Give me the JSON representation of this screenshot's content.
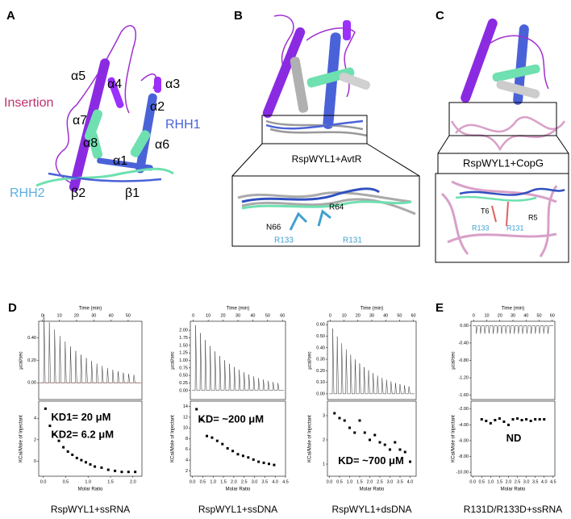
{
  "panels": [
    {
      "letter": "A",
      "labels": [
        "α5",
        "α4",
        "α3",
        "Insertion",
        "α7",
        "α2",
        "RHH1",
        "α8",
        "α6",
        "α1",
        "RHH2",
        "β2",
        "β1"
      ]
    },
    {
      "letter": "B",
      "caption": "RspWYL1+AvtR",
      "labels": [
        "R64",
        "N66",
        "R133",
        "R131"
      ]
    },
    {
      "letter": "C",
      "caption": "RspWYL1+CopG",
      "labels": [
        "T6",
        "R5",
        "R133",
        "R131"
      ]
    }
  ],
  "itc_panels": [
    {
      "letter": "D"
    },
    {
      "letter": "E"
    }
  ],
  "itc": [
    {
      "caption": "RspWYL1+ssRNA",
      "time_label": "Time (min)",
      "time_lim": [
        -2,
        58
      ],
      "time_ticks": [
        0,
        10,
        20,
        30,
        40,
        50
      ],
      "heat_label": "µcal/sec",
      "heat_lim": [
        -0.15,
        0.55
      ],
      "heat_ticks": [
        {
          "value": 0.4,
          "label": "0.40"
        },
        {
          "value": 0.2,
          "label": "0.20"
        },
        {
          "value": 0,
          "label": "0.00"
        }
      ],
      "enthalpy_label": "KCal/Mole of Injectant",
      "enthalpy_lim": [
        -1.4,
        5.6
      ],
      "enthalpy_ticks": [
        4,
        2,
        0
      ],
      "ratio_label": "Molar Ratio",
      "ratio_lim": [
        -0.1,
        2.2
      ],
      "ratio_ticks": [
        {
          "value": 0,
          "label": "0.0"
        },
        {
          "value": 0.5,
          "label": "0.5"
        },
        {
          "value": 1,
          "label": "1.0"
        },
        {
          "value": 1.5,
          "label": "1.5"
        },
        {
          "value": 2,
          "label": "2.0"
        }
      ],
      "points_x": [
        0.05,
        0.15,
        0.25,
        0.35,
        0.45,
        0.55,
        0.65,
        0.75,
        0.85,
        0.95,
        1.05,
        1.15,
        1.3,
        1.45,
        1.6,
        1.75,
        1.9,
        2.05
      ],
      "points_y": [
        4.9,
        3.3,
        2.5,
        1.9,
        1.3,
        0.9,
        0.6,
        0.3,
        0.1,
        -0.1,
        -0.3,
        -0.5,
        -0.6,
        -0.8,
        -0.9,
        -1.0,
        -1.0,
        -1.0
      ],
      "annotations": [
        "KD1= 20 μM",
        "KD2= 6.2 μM"
      ]
    },
    {
      "caption": "RspWYL1+ssDNA",
      "time_label": "Time (min)",
      "time_lim": [
        -2,
        62
      ],
      "time_ticks": [
        0,
        10,
        20,
        30,
        40,
        50,
        60
      ],
      "heat_label": "µcal/sec",
      "heat_lim": [
        -0.3,
        2.3
      ],
      "heat_ticks": [
        {
          "value": 2,
          "label": "2.00"
        },
        {
          "value": 1.75,
          "label": "1.75"
        },
        {
          "value": 1.5,
          "label": "1.50"
        },
        {
          "value": 1.25,
          "label": "1.25"
        },
        {
          "value": 1,
          "label": "1.00"
        },
        {
          "value": 0.75,
          "label": "0.75"
        },
        {
          "value": 0.5,
          "label": "0.50"
        },
        {
          "value": 0.25,
          "label": "0.25"
        },
        {
          "value": 0,
          "label": "0.00"
        }
      ],
      "enthalpy_label": "KCal/Mole of Injectant",
      "enthalpy_lim": [
        1,
        15
      ],
      "enthalpy_ticks": [
        14,
        12,
        10,
        8,
        6,
        4,
        2
      ],
      "ratio_label": "Molar Ratio",
      "ratio_lim": [
        -0.1,
        4.5
      ],
      "ratio_ticks": [
        {
          "value": 0,
          "label": "0.0"
        },
        {
          "value": 0.5,
          "label": "0.5"
        },
        {
          "value": 1,
          "label": "1.0"
        },
        {
          "value": 1.5,
          "label": "1.5"
        },
        {
          "value": 2,
          "label": "2.0"
        },
        {
          "value": 2.5,
          "label": "2.5"
        },
        {
          "value": 3,
          "label": "3.0"
        },
        {
          "value": 3.5,
          "label": "3.5"
        },
        {
          "value": 4,
          "label": "4.0"
        },
        {
          "value": 4.5,
          "label": "4.5"
        }
      ],
      "points_x": [
        0.2,
        0.45,
        0.7,
        0.95,
        1.2,
        1.45,
        1.7,
        1.95,
        2.2,
        2.45,
        2.7,
        2.95,
        3.2,
        3.45,
        3.7,
        3.95
      ],
      "points_y": [
        13.5,
        11.5,
        8.5,
        8.2,
        7.6,
        7.0,
        6.2,
        5.7,
        5.1,
        4.8,
        4.5,
        4.1,
        3.7,
        3.5,
        3.3,
        3.1
      ],
      "annotations": [
        "KD= ~200 μM"
      ]
    },
    {
      "caption": "RspWYL1+dsDNA",
      "time_label": "Time (min)",
      "time_lim": [
        -2,
        62
      ],
      "time_ticks": [
        0,
        10,
        20,
        30,
        40,
        50,
        60
      ],
      "heat_label": "µcal/sec",
      "heat_lim": [
        -0.05,
        0.63
      ],
      "heat_ticks": [
        {
          "value": 0.6,
          "label": "0.60"
        },
        {
          "value": 0.5,
          "label": "0.50"
        },
        {
          "value": 0.4,
          "label": "0.40"
        },
        {
          "value": 0.3,
          "label": "0.30"
        },
        {
          "value": 0.2,
          "label": "0.20"
        },
        {
          "value": 0.1,
          "label": "0.10"
        },
        {
          "value": 0,
          "label": "0.00"
        }
      ],
      "enthalpy_label": "KCal/Mole of Injectant",
      "enthalpy_lim": [
        0.5,
        3.6
      ],
      "enthalpy_ticks": [
        3,
        2,
        1
      ],
      "ratio_label": "Molar Ratio",
      "ratio_lim": [
        -0.1,
        4.3
      ],
      "ratio_ticks": [
        {
          "value": 0,
          "label": "0.0"
        },
        {
          "value": 0.5,
          "label": "0.5"
        },
        {
          "value": 1,
          "label": "1.0"
        },
        {
          "value": 1.5,
          "label": "1.5"
        },
        {
          "value": 2,
          "label": "2.0"
        },
        {
          "value": 2.5,
          "label": "2.5"
        },
        {
          "value": 3,
          "label": "3.0"
        },
        {
          "value": 3.5,
          "label": "3.5"
        },
        {
          "value": 4,
          "label": "4.0"
        }
      ],
      "points_x": [
        0.25,
        0.5,
        0.75,
        1.0,
        1.25,
        1.5,
        1.75,
        2.0,
        2.25,
        2.5,
        2.75,
        3.0,
        3.25,
        3.5,
        3.75,
        4.0
      ],
      "points_y": [
        3.1,
        2.9,
        2.8,
        2.5,
        2.3,
        2.8,
        2.3,
        2.0,
        2.2,
        1.9,
        1.8,
        1.6,
        1.9,
        1.6,
        1.5,
        1.1
      ],
      "annotations": [
        "KD= ~700 μM"
      ]
    },
    {
      "caption": "R131D/R133D+ssRNA",
      "time_label": "Time (min)",
      "time_lim": [
        -2,
        62
      ],
      "time_ticks": [
        0,
        10,
        20,
        30,
        40,
        50,
        60
      ],
      "heat_label": "µcal/sec",
      "heat_lim": [
        -1.7,
        0.1
      ],
      "heat_ticks": [
        {
          "value": 0,
          "label": "0.00"
        },
        {
          "value": -0.4,
          "label": "-0.40"
        },
        {
          "value": -0.8,
          "label": "-0.80"
        },
        {
          "value": -1.2,
          "label": "-1.20"
        },
        {
          "value": -1.6,
          "label": "-1.60"
        }
      ],
      "enthalpy_label": "KCal/Mole of Injectant",
      "enthalpy_lim": [
        -10.5,
        -1
      ],
      "enthalpy_ticks": [
        {
          "value": -2,
          "label": "-2.00"
        },
        {
          "value": -4,
          "label": "-4.00"
        },
        {
          "value": -6,
          "label": "-6.00"
        },
        {
          "value": -8,
          "label": "-8.00"
        },
        {
          "value": -10,
          "label": "-10.00"
        }
      ],
      "ratio_label": "Molar Ratio",
      "ratio_lim": [
        -0.1,
        4.6
      ],
      "ratio_ticks": [
        {
          "value": 0,
          "label": "0.0"
        },
        {
          "value": 0.5,
          "label": "0.5"
        },
        {
          "value": 1,
          "label": "1.0"
        },
        {
          "value": 1.5,
          "label": "1.5"
        },
        {
          "value": 2,
          "label": "2.0"
        },
        {
          "value": 2.5,
          "label": "2.5"
        },
        {
          "value": 3,
          "label": "3.0"
        },
        {
          "value": 3.5,
          "label": "3.5"
        },
        {
          "value": 4,
          "label": "4.0"
        },
        {
          "value": 4.5,
          "label": "4.5"
        }
      ],
      "points_x": [
        0.5,
        0.75,
        1.0,
        1.25,
        1.5,
        1.75,
        2.0,
        2.25,
        2.5,
        2.75,
        3.0,
        3.25,
        3.5,
        3.75,
        4.0
      ],
      "points_y": [
        -3.3,
        -3.5,
        -3.8,
        -3.4,
        -3.2,
        -3.6,
        -4.0,
        -3.3,
        -3.2,
        -3.4,
        -3.3,
        -3.5,
        -3.3,
        -3.3,
        -3.3
      ],
      "annotations": [
        "ND"
      ]
    }
  ]
}
